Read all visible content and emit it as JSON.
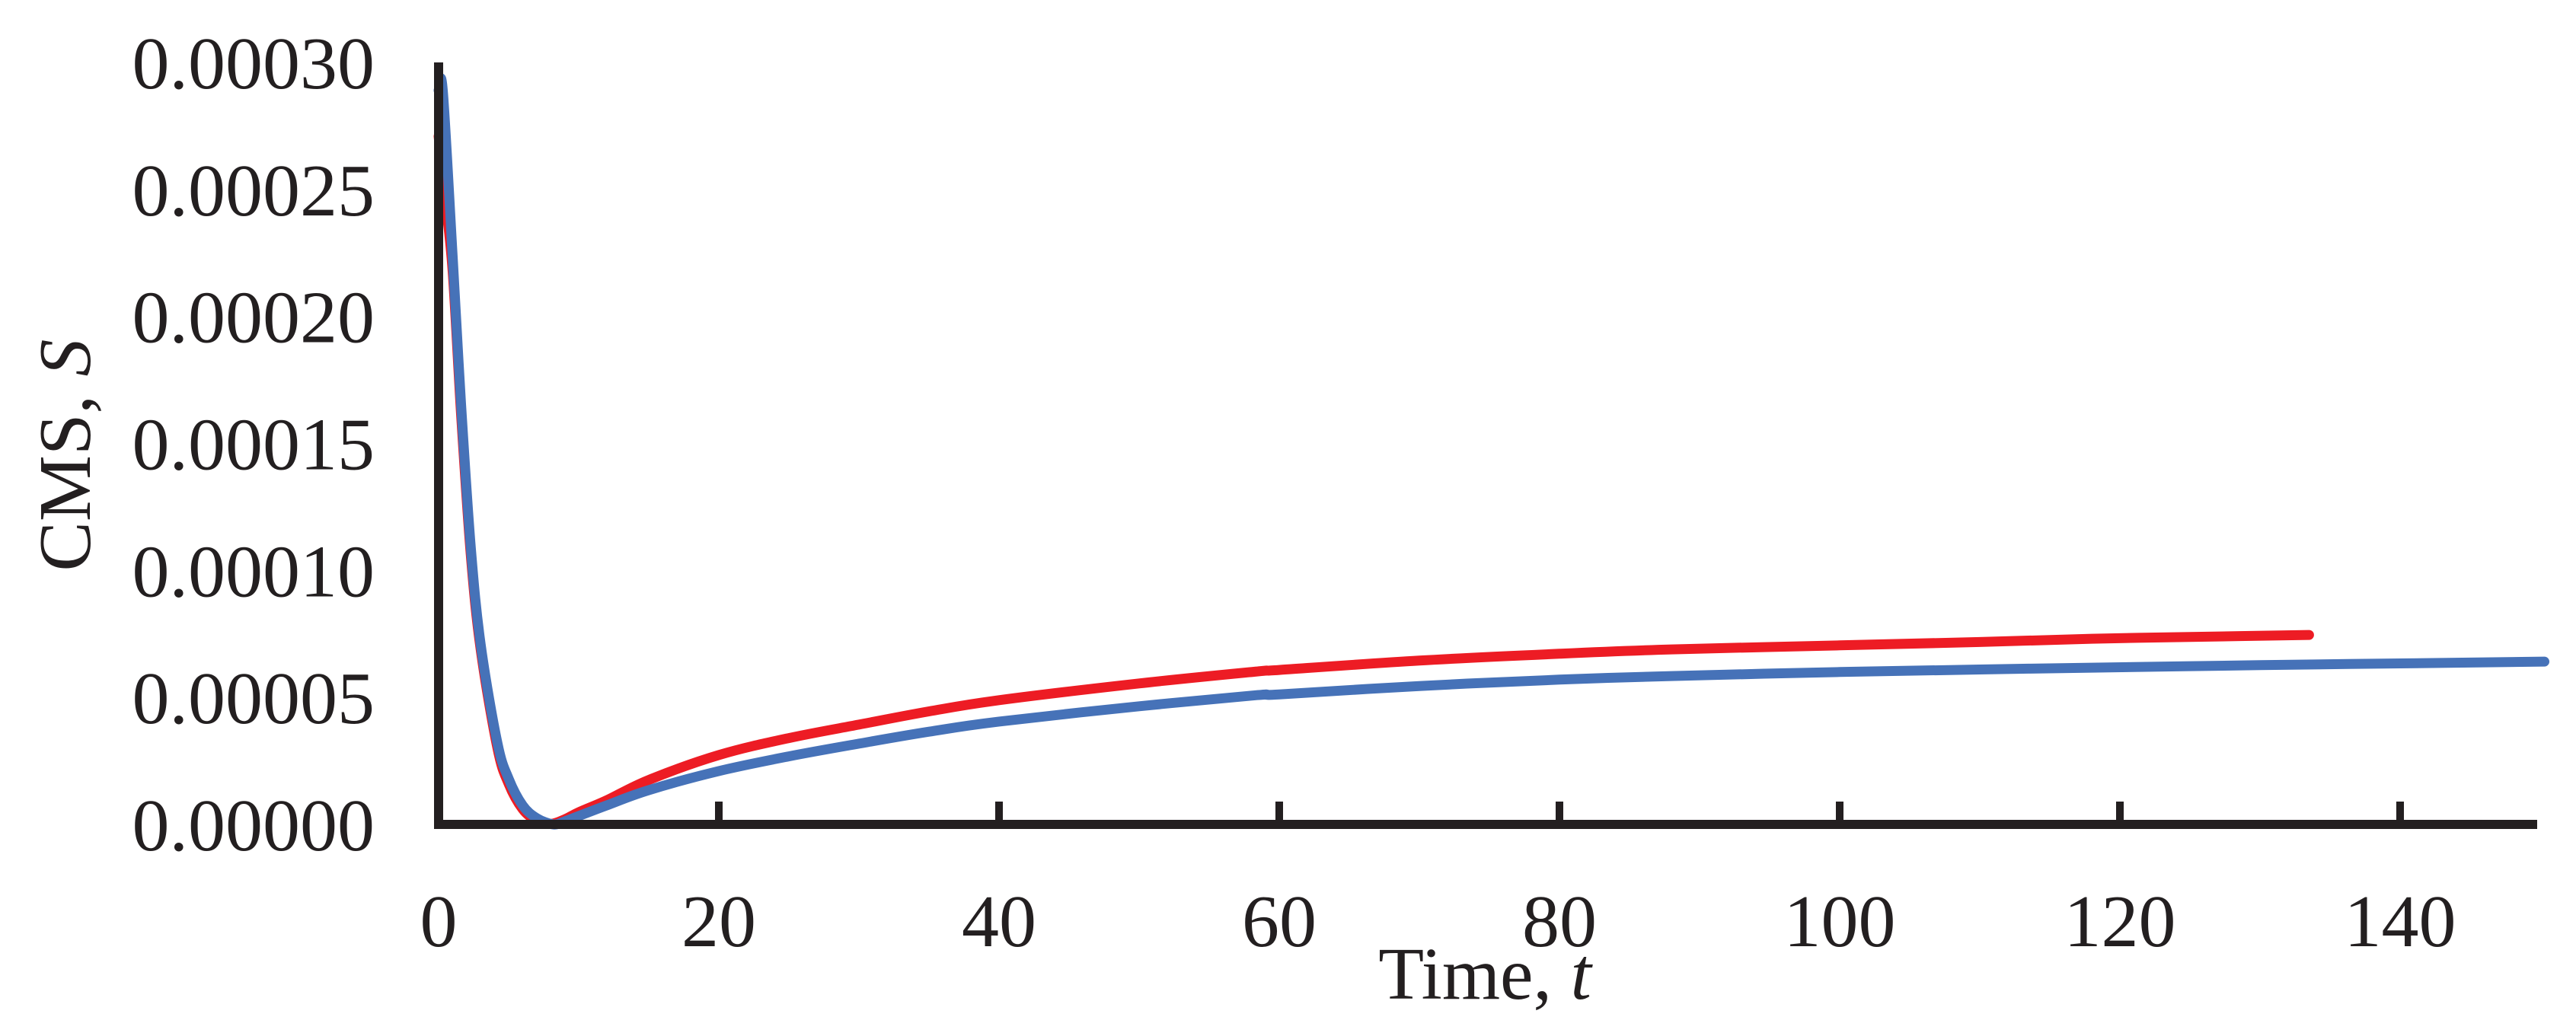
{
  "chart_data": {
    "type": "line",
    "title": "",
    "xlabel": "Time, t",
    "xlabel_parts": {
      "text": "Time, ",
      "var": "t"
    },
    "ylabel": "CMS, S",
    "ylabel_parts": {
      "text": "CMS, ",
      "var": "S"
    },
    "xlim": [
      0,
      150
    ],
    "ylim": [
      0,
      0.0003
    ],
    "x_ticks": [
      0,
      20,
      40,
      60,
      80,
      100,
      120,
      140
    ],
    "x_tick_labels": [
      "0",
      "20",
      "40",
      "60",
      "80",
      "100",
      "120",
      "140"
    ],
    "y_ticks": [
      0,
      5e-05,
      0.0001,
      0.00015,
      0.0002,
      0.00025,
      0.0003
    ],
    "y_tick_labels": [
      "0.00000",
      "0.00005",
      "0.00010",
      "0.00015",
      "0.00020",
      "0.00025",
      "0.00030"
    ],
    "grid": false,
    "legend": null,
    "series": [
      {
        "name": "red curve",
        "color": "#ed1c24",
        "x": [
          0,
          0.5,
          1.0,
          1.6,
          2.3,
          3.0,
          4.2,
          5.0,
          6.0,
          7.0,
          8.0,
          9.0,
          10,
          12,
          15,
          20,
          25,
          30,
          35,
          40,
          50,
          58.4,
          60,
          70,
          80,
          88,
          100,
          110,
          118,
          125,
          133.5
        ],
        "y": [
          0.000271,
          0.000245,
          0.000218,
          0.000162,
          0.000106,
          6.9e-05,
          3e-05,
          1.6e-05,
          6e-06,
          1.5e-06,
          2e-07,
          2e-06,
          4.8e-06,
          9.5e-06,
          1.75e-05,
          2.73e-05,
          3.4e-05,
          3.93e-05,
          4.45e-05,
          4.89e-05,
          5.55e-05,
          6.02e-05,
          6.08e-05,
          6.45e-05,
          6.72e-05,
          6.89e-05,
          7.05e-05,
          7.18e-05,
          7.31e-05,
          7.38e-05,
          7.46e-05
        ]
      },
      {
        "name": "blue curve",
        "color": "#4672b8",
        "x": [
          0,
          0.3,
          1.0,
          1.6,
          2.3,
          3.0,
          4.2,
          5.0,
          6.0,
          7.0,
          8.2,
          9.0,
          10,
          12,
          15,
          20,
          25,
          30,
          35,
          40,
          50,
          58.4,
          60,
          70,
          80,
          88,
          100,
          110,
          118,
          130,
          140,
          150.3
        ],
        "y": [
          0.000289,
          0.000289,
          0.000224,
          0.000166,
          0.000109,
          7.1e-05,
          3.2e-05,
          1.8e-05,
          7.5e-06,
          2.5e-06,
          0.0,
          1.2e-06,
          3.3e-06,
          7.5e-06,
          1.35e-05,
          2.1e-05,
          2.68e-05,
          3.18e-05,
          3.65e-05,
          4.05e-05,
          4.65e-05,
          5.09e-05,
          5.12e-05,
          5.45e-05,
          5.7e-05,
          5.84e-05,
          6e-05,
          6.1e-05,
          6.17e-05,
          6.27e-05,
          6.34e-05,
          6.41e-05
        ]
      }
    ]
  },
  "style": {
    "axis_color": "#231f20",
    "background": "#ffffff"
  }
}
